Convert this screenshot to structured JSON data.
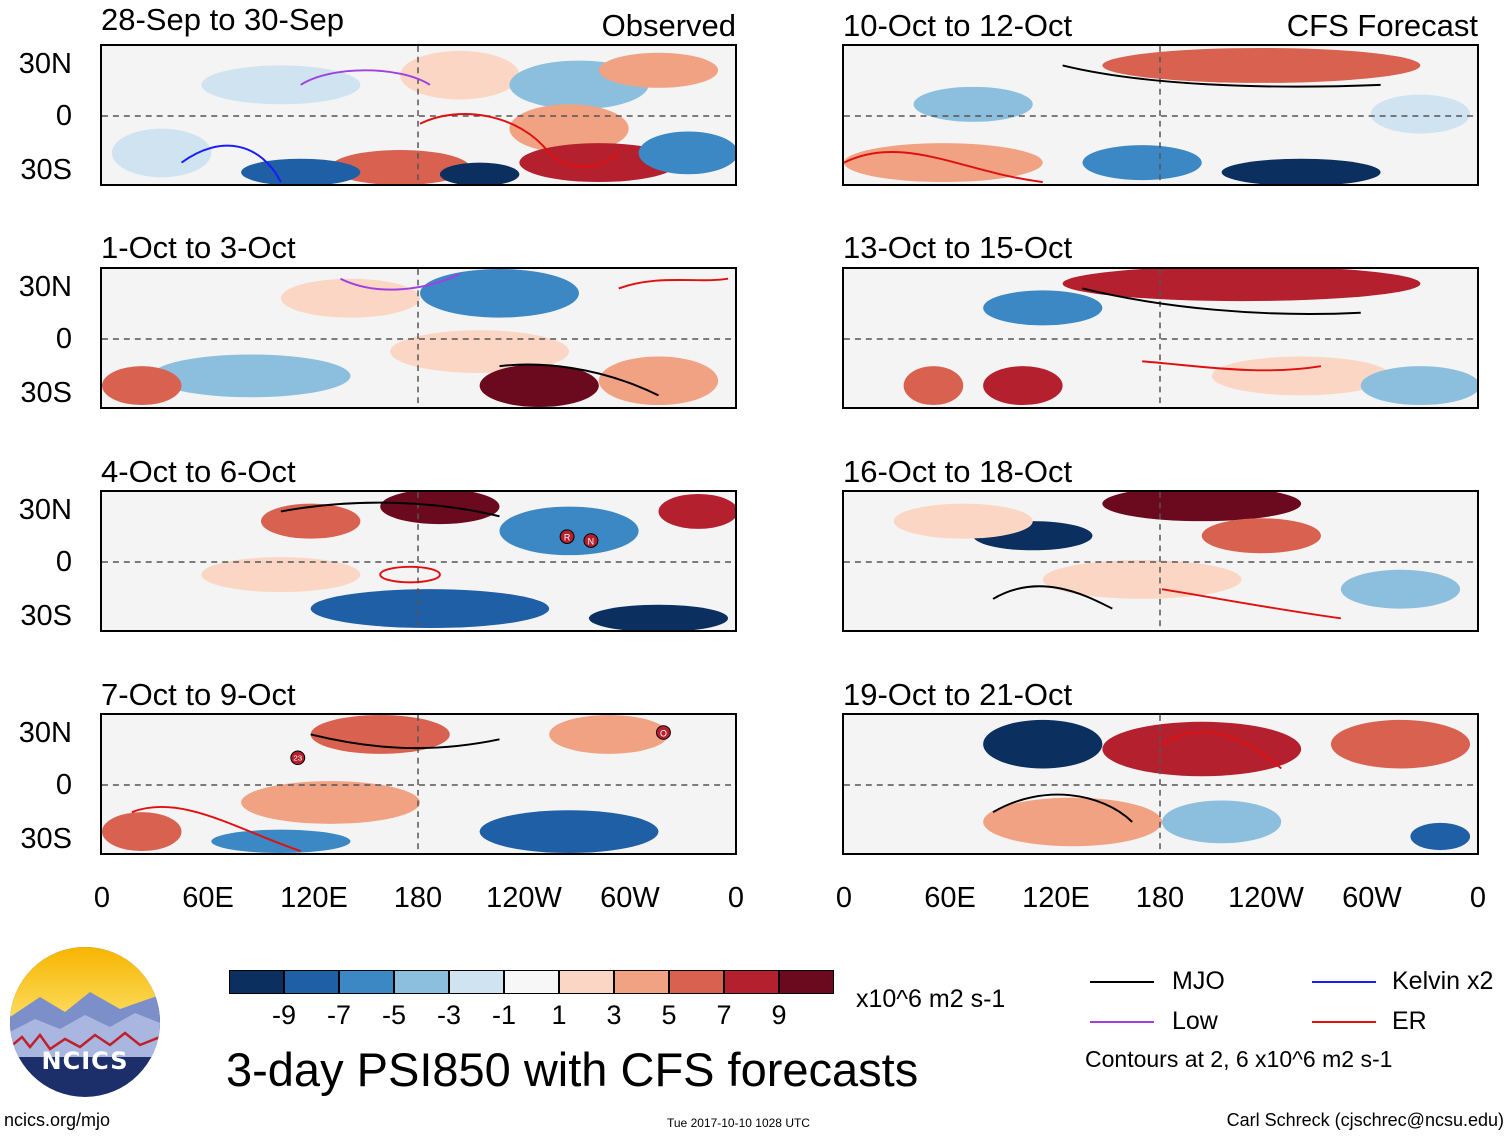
{
  "header": {
    "observed_label": "Observed",
    "forecast_label": "CFS Forecast"
  },
  "panels": {
    "left": [
      {
        "title": "28-Sep to 30-Sep"
      },
      {
        "title": "1-Oct to 3-Oct"
      },
      {
        "title": "4-Oct to 6-Oct"
      },
      {
        "title": "7-Oct to 9-Oct"
      }
    ],
    "right": [
      {
        "title": "10-Oct to 12-Oct"
      },
      {
        "title": "13-Oct to 15-Oct"
      },
      {
        "title": "16-Oct to 18-Oct"
      },
      {
        "title": "19-Oct to 21-Oct"
      }
    ]
  },
  "axes": {
    "lat_labels": [
      "30N",
      "0",
      "30S"
    ],
    "lon_labels": [
      "0",
      "60E",
      "120E",
      "180",
      "120W",
      "60W",
      "0"
    ]
  },
  "storm_markers": {
    "panel3": [
      "R",
      "N"
    ],
    "panel4": [
      "23",
      "O"
    ]
  },
  "colorbar": {
    "colors": [
      "#0b2f5e",
      "#1f5fa6",
      "#3b88c4",
      "#8cbfdd",
      "#cfe3f0",
      "#f7f7f7",
      "#fbd6c4",
      "#f0a282",
      "#d9614f",
      "#b4202e",
      "#6b0a1e"
    ],
    "labels": [
      "-9",
      "-7",
      "-5",
      "-3",
      "-1",
      "1",
      "3",
      "5",
      "7",
      "9"
    ],
    "units": "x10^6 m2 s-1"
  },
  "legend": {
    "items": [
      {
        "label": "MJO",
        "color": "#000000"
      },
      {
        "label": "Kelvin x2",
        "color": "#1a1aff"
      },
      {
        "label": "Low",
        "color": "#a040e0"
      },
      {
        "label": "ER",
        "color": "#e01010"
      }
    ],
    "note": "Contours at 2, 6 x10^6 m2 s-1"
  },
  "footer": {
    "main_title": "3-day PSI850 with CFS forecasts",
    "url": "ncics.org/mjo",
    "timestamp": "Tue 2017-10-10 1028 UTC",
    "author": "Carl Schreck (cjschrec@ncsu.edu)",
    "logo_text": "NCICS"
  }
}
